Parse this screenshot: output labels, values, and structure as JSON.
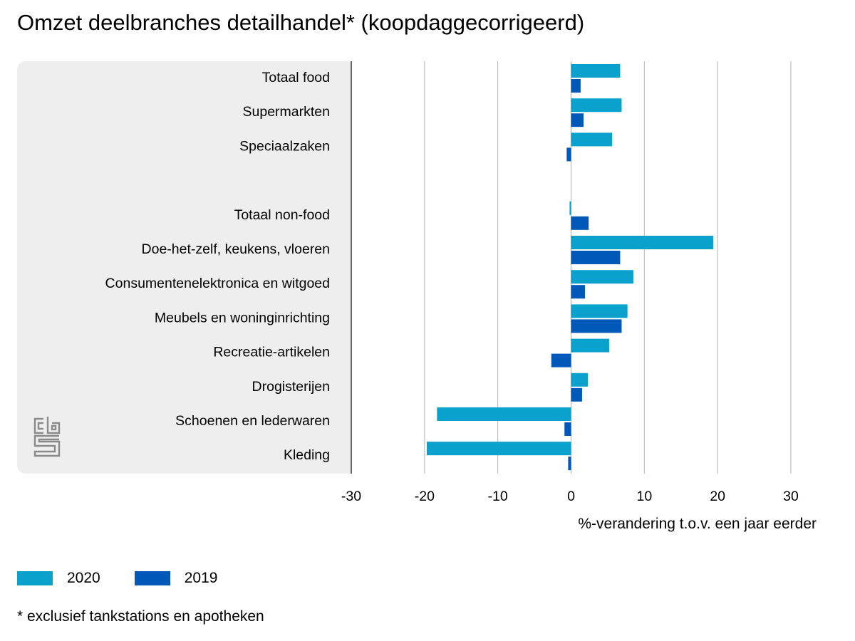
{
  "title": "Omzet deelbranches detailhandel* (koopdaggecorrigeerd)",
  "footnote": "* exclusief tankstations en apotheken",
  "logo": "cbs",
  "colors": {
    "s2020": "#0aa1cc",
    "s2019": "#0058b8",
    "panel": "#eeeeee",
    "grid": "#b3b3b3",
    "axis": "#666666"
  },
  "chart_data": {
    "type": "bar",
    "orientation": "horizontal",
    "title": "Omzet deelbranches detailhandel* (koopdaggecorrigeerd)",
    "xlabel": "%-verandering t.o.v. een jaar eerder",
    "ylabel": "",
    "xlim": [
      -30,
      30
    ],
    "xticks": [
      "-30",
      "-20",
      "-10",
      "0",
      "10",
      "20",
      "30"
    ],
    "xtick_values": [
      -30,
      -20,
      -10,
      0,
      10,
      20,
      30
    ],
    "grid": true,
    "legend_position": "bottom-left",
    "categories": [
      "Totaal food",
      "Supermarkten",
      "Speciaalzaken",
      "",
      "Totaal non-food",
      "Doe-het-zelf, keukens, vloeren",
      "Consumentenelektronica en witgoed",
      "Meubels en woninginrichting",
      "Recreatie-artikelen",
      "Drogisterijen",
      "Schoenen en lederwaren",
      "Kleding"
    ],
    "series": [
      {
        "name": "2020",
        "color": "#0aa1cc",
        "values": [
          6.7,
          6.9,
          5.6,
          null,
          -0.2,
          19.4,
          8.5,
          7.7,
          5.2,
          2.3,
          -18.3,
          -19.7
        ]
      },
      {
        "name": "2019",
        "color": "#0058b8",
        "values": [
          1.3,
          1.7,
          -0.6,
          null,
          2.4,
          6.7,
          1.9,
          6.9,
          -2.7,
          1.5,
          -0.9,
          -0.4
        ]
      }
    ]
  }
}
